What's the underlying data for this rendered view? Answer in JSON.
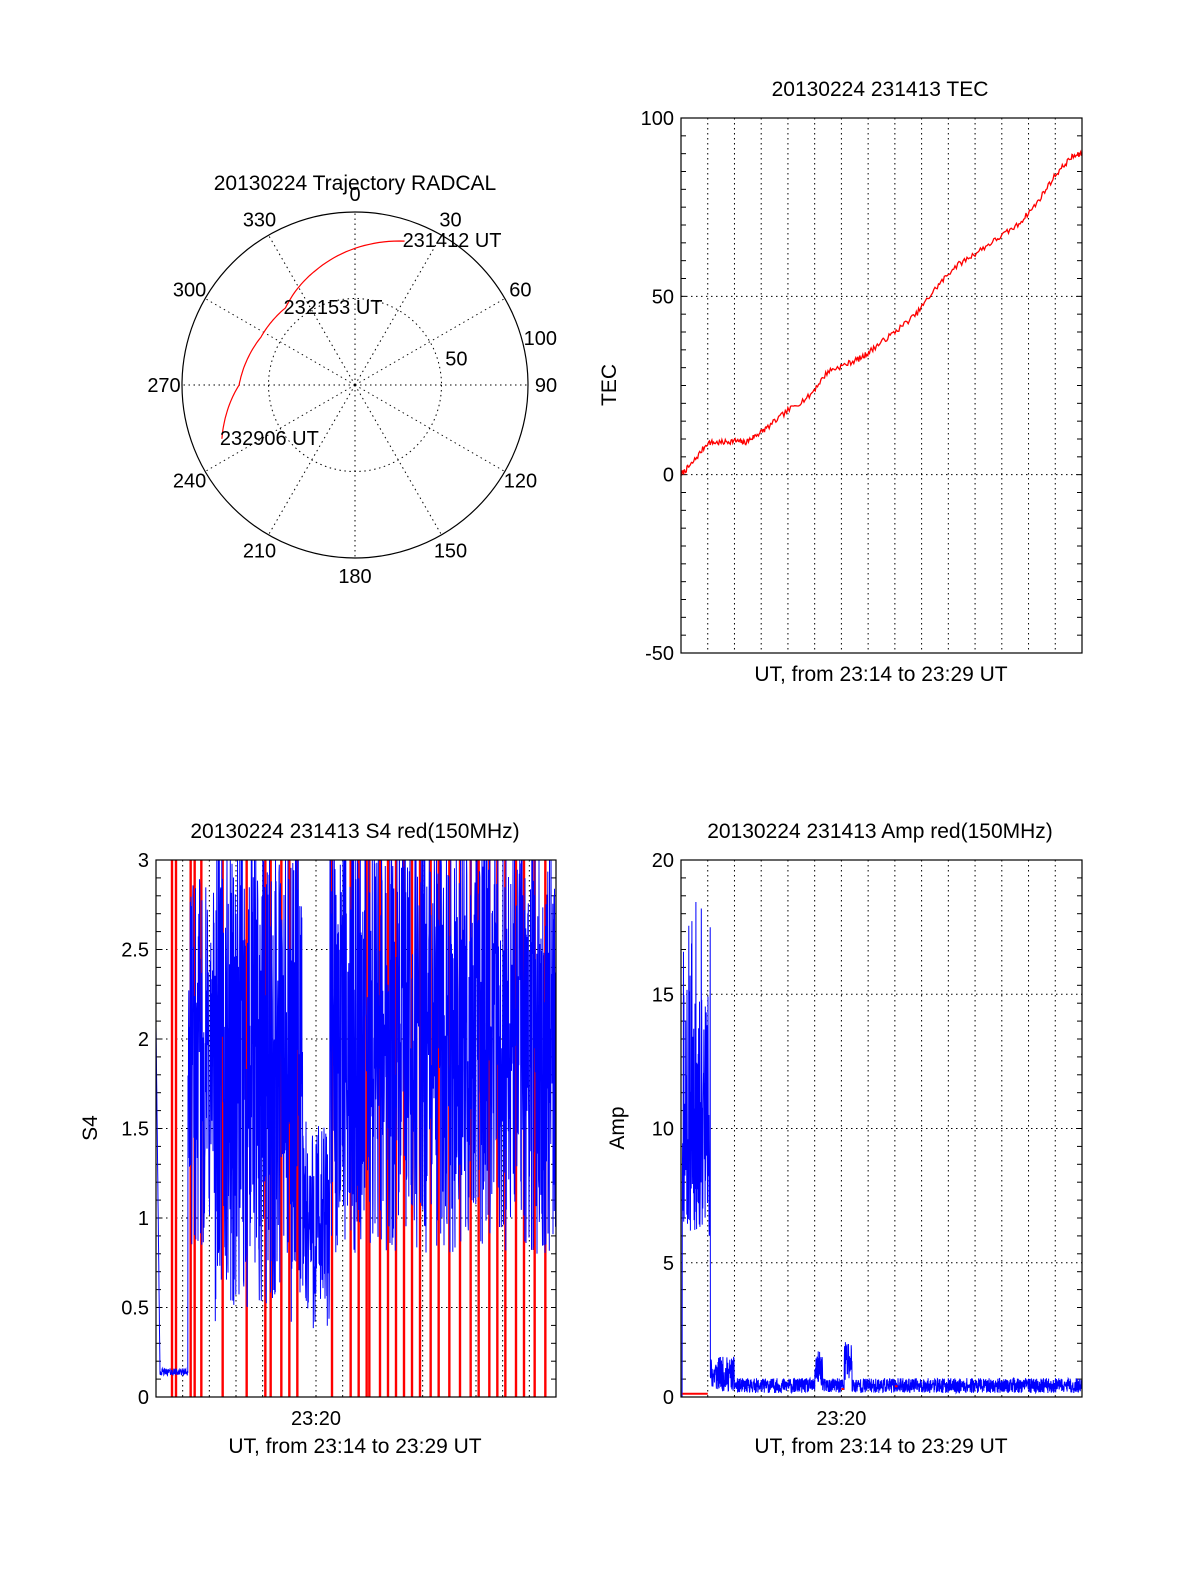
{
  "chart_data": [
    {
      "id": "trajectory",
      "type": "polar",
      "title": "20130224 Trajectory RADCAL",
      "angle_labels": [
        "0",
        "30",
        "60",
        "90",
        "120",
        "150",
        "180",
        "210",
        "240",
        "270",
        "300",
        "330"
      ],
      "radial_labels": [
        "50",
        "100"
      ],
      "rmax": 100,
      "track_color": "#ff0000",
      "track": [
        {
          "az": 19,
          "r": 88
        },
        {
          "az": 341,
          "r": 70
        },
        {
          "az": 318,
          "r": 60
        },
        {
          "az": 297,
          "r": 61
        },
        {
          "az": 270,
          "r": 67
        },
        {
          "az": 248,
          "r": 83
        }
      ],
      "annotations": [
        {
          "text": "231412 UT",
          "az": 19,
          "r": 88
        },
        {
          "text": "232153 UT",
          "az": 318,
          "r": 60
        },
        {
          "text": "232906 UT",
          "az": 248,
          "r": 83
        }
      ]
    },
    {
      "id": "tec",
      "type": "line",
      "title": "20130224 231413 TEC",
      "xlabel": "UT, from 23:14 to 23:29 UT",
      "ylabel": "TEC",
      "xlim": [
        0,
        15
      ],
      "ylim": [
        -50,
        100
      ],
      "yticks": [
        "-50",
        "0",
        "50",
        "100"
      ],
      "grid": true,
      "series": [
        {
          "color": "#ff0000",
          "x": [
            0,
            0.4,
            1.0,
            1.5,
            2.0,
            2.4,
            2.8,
            3.2,
            4.0,
            4.8,
            5.5,
            6.2,
            6.8,
            7.3,
            8.0,
            8.8,
            9.5,
            10.2,
            11.0,
            11.8,
            12.6,
            13.3,
            14.0,
            14.6,
            15.0
          ],
          "y": [
            0,
            3,
            9,
            9,
            9.5,
            9,
            11,
            13,
            18,
            22,
            29,
            31,
            33,
            36,
            40,
            45,
            52,
            58,
            62,
            66,
            70,
            76,
            84,
            89,
            90
          ]
        }
      ]
    },
    {
      "id": "s4",
      "type": "line",
      "title": "20130224 231413 S4 red(150MHz)",
      "xlabel": "UT, from 23:14 to 23:29 UT",
      "ylabel": "S4",
      "xlim": [
        0,
        15
      ],
      "ylim": [
        0,
        3
      ],
      "xticks": [
        {
          "x": 6,
          "label": "23:20"
        }
      ],
      "yticks": [
        "0",
        "0.5",
        "1",
        "1.5",
        "2",
        "2.5",
        "3"
      ],
      "grid": true,
      "series": [
        {
          "color": "#0000ff",
          "name": "",
          "style": "dense"
        },
        {
          "color": "#ff0000",
          "name": "",
          "style": "spikes"
        }
      ]
    },
    {
      "id": "amp",
      "type": "line",
      "title": "20130224 231413 Amp red(150MHz)",
      "xlabel": "UT, from 23:14 to 23:29 UT",
      "ylabel": "Amp",
      "xlim": [
        0,
        15
      ],
      "ylim": [
        0,
        20
      ],
      "xticks": [
        {
          "x": 6,
          "label": "23:20"
        }
      ],
      "yticks": [
        "0",
        "5",
        "10",
        "15",
        "20"
      ],
      "grid": true,
      "series": [
        {
          "color": "#0000ff",
          "name": "",
          "style": "dense"
        },
        {
          "color": "#ff0000",
          "name": "",
          "style": "baseline"
        }
      ]
    }
  ]
}
